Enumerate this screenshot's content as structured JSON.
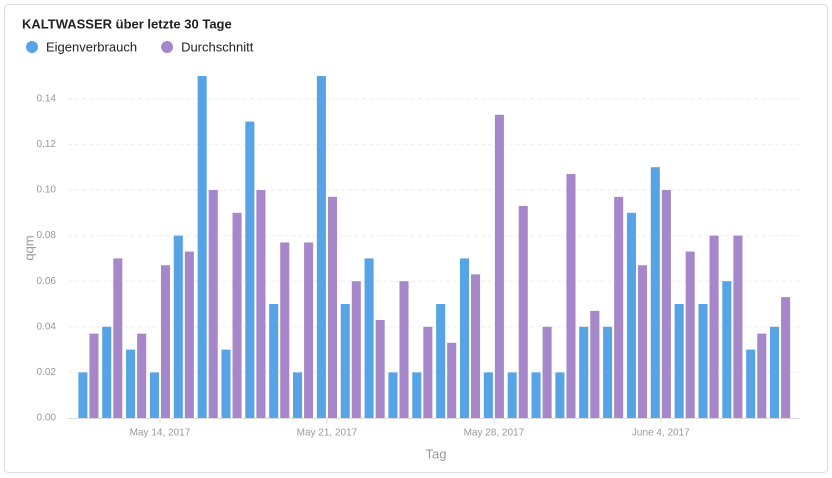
{
  "chart_data": {
    "type": "bar",
    "title": "KALTWASSER über letzte 30 Tage",
    "x_label": "Tag",
    "y_label": "qqm",
    "categories": [
      null,
      null,
      null,
      "May 14, 2017",
      null,
      null,
      null,
      null,
      null,
      null,
      "May 21, 2017",
      null,
      null,
      null,
      null,
      null,
      null,
      "May 28, 2017",
      null,
      null,
      null,
      null,
      null,
      null,
      "June 4, 2017",
      null,
      null,
      null,
      null,
      null
    ],
    "series": [
      {
        "name": "Eigenverbrauch",
        "color": "#56a3e6",
        "values": [
          0.02,
          0.04,
          0.03,
          0.02,
          0.08,
          0.15,
          0.03,
          0.13,
          0.05,
          0.02,
          0.15,
          0.05,
          0.07,
          0.02,
          0.02,
          0.05,
          0.07,
          0.02,
          0.02,
          0.02,
          0.02,
          0.04,
          0.04,
          0.09,
          0.11,
          0.05,
          0.05,
          0.06,
          0.03,
          0.04
        ]
      },
      {
        "name": "Durchschnitt",
        "color": "#a687c9",
        "values": [
          0.037,
          0.07,
          0.037,
          0.067,
          0.073,
          0.1,
          0.09,
          0.1,
          0.077,
          0.077,
          0.097,
          0.06,
          0.043,
          0.06,
          0.04,
          0.033,
          0.063,
          0.133,
          0.093,
          0.04,
          0.107,
          0.047,
          0.097,
          0.067,
          0.1,
          0.073,
          0.08,
          0.08,
          0.037,
          0.053
        ]
      }
    ],
    "ylim": [
      0,
      0.15
    ],
    "yticks": [
      {
        "value": 0,
        "label": "0.00"
      },
      0.02,
      0.04,
      0.06,
      0.08,
      {
        "value": 0.1,
        "label": "0.10"
      },
      0.12,
      0.14
    ],
    "grid": true,
    "legend": "top-left"
  }
}
